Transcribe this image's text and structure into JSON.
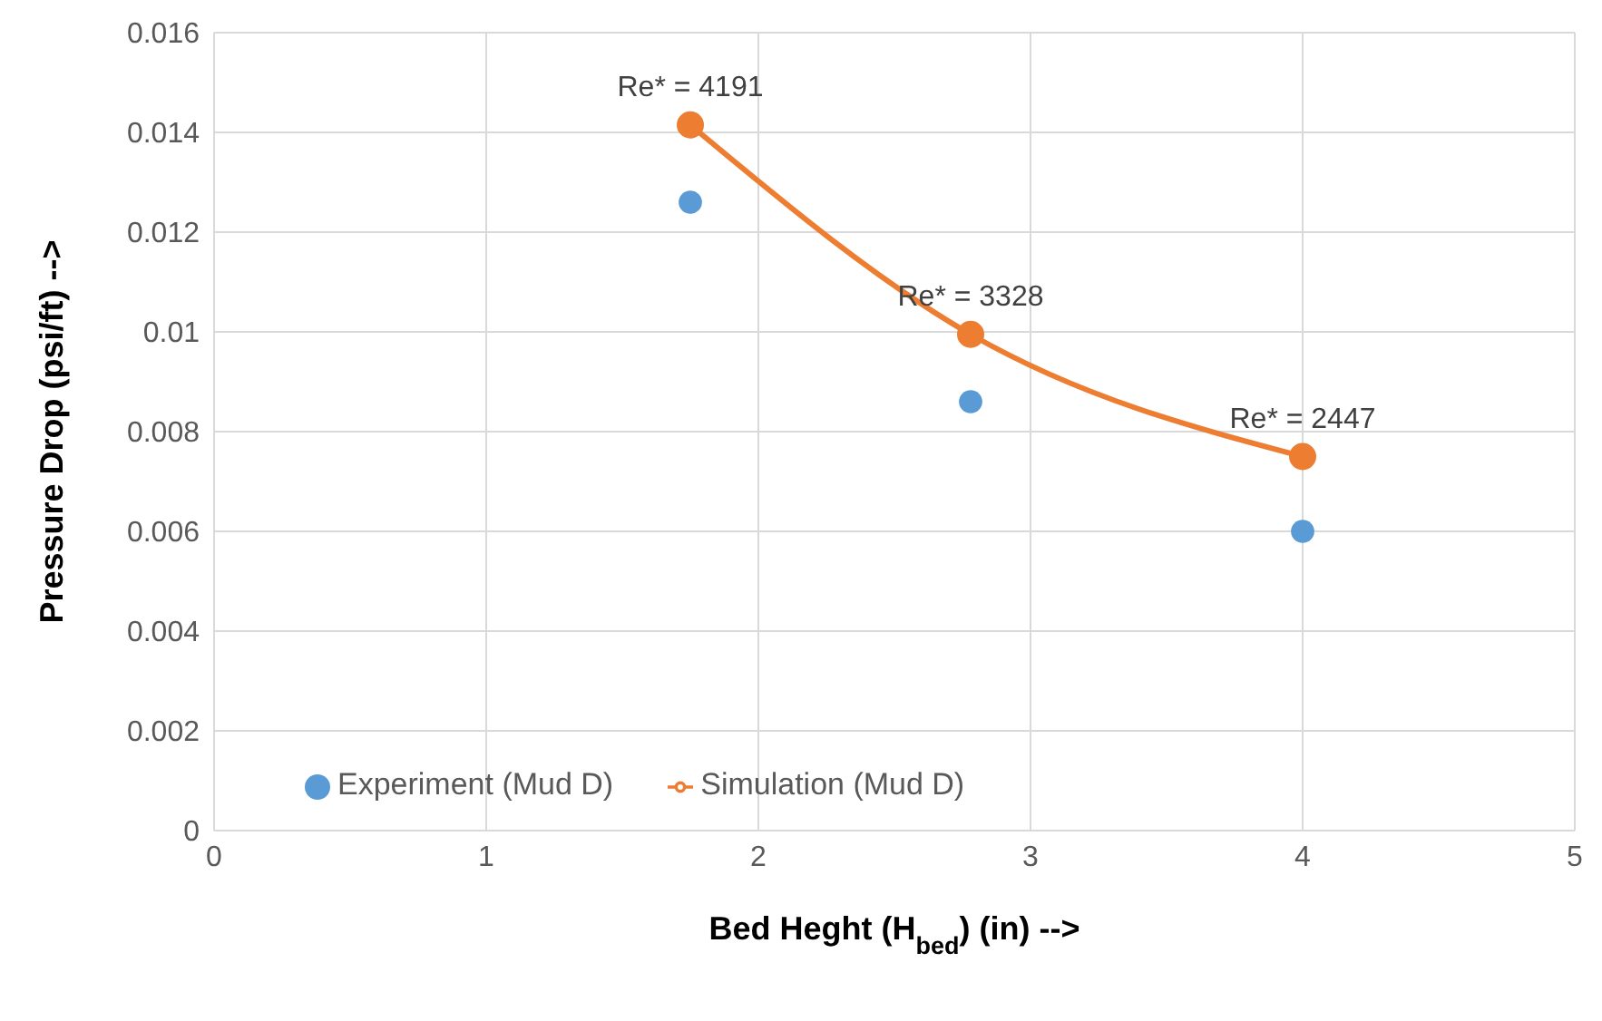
{
  "chart_data": {
    "type": "scatter",
    "xlabel": "Bed Heght (H$_{bed}$) (in) -->",
    "ylabel": "Pressure Drop (psi/ft) -->",
    "xlim": [
      0,
      5
    ],
    "xticks": [
      0,
      1,
      2,
      3,
      4,
      5
    ],
    "ylim": [
      0,
      0.016
    ],
    "yticks": [
      0,
      0.002,
      0.004,
      0.006,
      0.008,
      0.01,
      0.012,
      0.014,
      0.016
    ],
    "grid": true,
    "legend": "bottom left",
    "marker": "circle",
    "series": [
      {
        "name": "Experiment (Mud D)",
        "color": "#5b9bd5",
        "x": [
          1.75,
          2.78,
          4
        ],
        "values": [
          0.0126,
          0.0086,
          0.006
        ]
      },
      {
        "name": "Simulation (Mud D)",
        "type": "line",
        "color": "#ed7d31",
        "x": [
          1.75,
          2.78,
          4
        ],
        "values": [
          0.01415,
          0.00995,
          0.0075
        ],
        "line_style": "solid"
      }
    ],
    "annotations": [
      {
        "text": "Re* = 4191",
        "x": 1.75,
        "y": 0.01415
      },
      {
        "text": "Re* = 3328",
        "x": 2.78,
        "y": 0.00995
      },
      {
        "text": "Re* = 2447",
        "x": 4,
        "y": 0.0075
      }
    ]
  }
}
